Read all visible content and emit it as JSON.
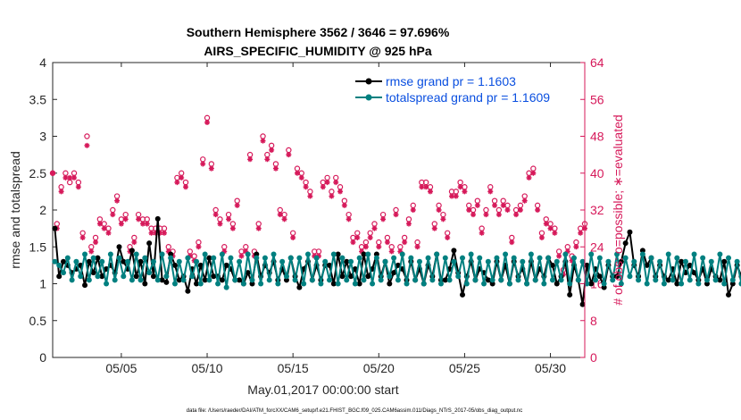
{
  "chart_data": {
    "type": "line",
    "title_line1": "Southern Hemisphere 3562 / 3646 = 97.696%",
    "title_line2": "AIRS_SPECIFIC_HUMIDITY @ 925 hPa",
    "xlabel": "May.01,2017 00:00:00 start",
    "ylabel_left": "rmse and totalspread",
    "ylabel_right": "# of obs: o=possible; ∗=evaluated",
    "ylim_left": [
      0,
      4
    ],
    "ylim_right": [
      0,
      64
    ],
    "yticks_left": [
      "0",
      "0.5",
      "1",
      "1.5",
      "2",
      "2.5",
      "3",
      "3.5",
      "4"
    ],
    "yticks_right": [
      "0",
      "8",
      "16",
      "24",
      "32",
      "40",
      "48",
      "56",
      "64"
    ],
    "x_range_days": [
      1.0,
      32.0
    ],
    "x_ticks": [
      {
        "day": 5,
        "label": "05/05"
      },
      {
        "day": 10,
        "label": "05/10"
      },
      {
        "day": 15,
        "label": "05/15"
      },
      {
        "day": 20,
        "label": "05/20"
      },
      {
        "day": 25,
        "label": "05/25"
      },
      {
        "day": 30,
        "label": "05/30"
      }
    ],
    "footnote": "data file: /Users/raeder/DAI/ATM_forcXX/CAM6_setup/f.e21.FHIST_BGC.f09_025.CAM6assim.011/Diags_NTrS_2017-05/obs_diag_output.nc",
    "series": [
      {
        "name": "rmse grand pr = 1.1603",
        "color": "#000000",
        "x_start": 1.125,
        "x_step": 0.25,
        "values": [
          1.75,
          1.1,
          1.3,
          1.25,
          1.15,
          1.2,
          1.25,
          0.98,
          1.3,
          1.15,
          1.35,
          1.1,
          1.2,
          1.25,
          1.15,
          1.5,
          1.3,
          1.2,
          1.45,
          1.1,
          1.3,
          1.0,
          1.55,
          1.1,
          1.88,
          1.05,
          1.02,
          1.4,
          1.25,
          1.05,
          1.1,
          0.9,
          1.2,
          1.0,
          1.25,
          1.05,
          1.35,
          1.1,
          1.1,
          1.05,
          1.25,
          1.2,
          1.05,
          1.05,
          1.0,
          1.15,
          1.0,
          1.4,
          1.1,
          1.25,
          1.15,
          1.3,
          1.05,
          1.2,
          1.05,
          1.35,
          1.1,
          0.95,
          1.2,
          1.3,
          1.05,
          1.25,
          1.05,
          1.25,
          1.25,
          1.0,
          1.4,
          1.1,
          1.3,
          1.1,
          1.2,
          1.0,
          1.4,
          1.1,
          1.2,
          1.4,
          1.1,
          1.3,
          1.0,
          1.15,
          1.25,
          1.2,
          1.05,
          1.3,
          1.05,
          1.2,
          1.0,
          1.25,
          1.1,
          1.4,
          1.05,
          1.05,
          1.2,
          1.45,
          1.15,
          0.85,
          1.1,
          1.3,
          1.05,
          1.2,
          1.15,
          1.05,
          1.0,
          1.3,
          1.05,
          1.25,
          1.0,
          1.3,
          1.1,
          1.2,
          1.0,
          1.3,
          1.05,
          1.2,
          1.1,
          1.35,
          1.25,
          1.0,
          1.1,
          1.3,
          0.85,
          1.25,
          1.05,
          0.72,
          1.25,
          1.0,
          1.2,
          1.1,
          0.95,
          1.25,
          1.1,
          1.1,
          1.3,
          1.55,
          1.7,
          1.25,
          1.1,
          1.45,
          1.25,
          1.35,
          1.1,
          1.25,
          1.1,
          1.05,
          1.2,
          1.0,
          1.3,
          1.15,
          1.25,
          1.15,
          1.05,
          1.2,
          1.0,
          1.2,
          1.1,
          1.05,
          1.3,
          0.85,
          1.0,
          1.25,
          1.1,
          1.25,
          1.05,
          1.2,
          1.05,
          1.05,
          1.2,
          0.85,
          1.0,
          1.0,
          1.1,
          1.25,
          1.1,
          1.3,
          1.05,
          0.9,
          1.2,
          1.05,
          0.82,
          0.85,
          1.3,
          1.1,
          1.0,
          1.2,
          1.2,
          1.0,
          1.05,
          1.15,
          1.2,
          1.0,
          1.15,
          1.0,
          1.25,
          1.05,
          1.2,
          1.05,
          1.15,
          1.1,
          1.25,
          0.85,
          1.2,
          1.05,
          1.0,
          0.9,
          1.3,
          1.2,
          0.85,
          1.1,
          1.15,
          0.95,
          0.9
        ]
      },
      {
        "name": "totalspread grand pr = 1.1609",
        "color": "#008080",
        "x_start": 1.125,
        "x_step": 0.25,
        "values": [
          1.3,
          1.25,
          1.15,
          1.35,
          1.05,
          1.3,
          1.1,
          1.4,
          1.05,
          1.35,
          1.1,
          1.3,
          1.0,
          1.4,
          1.05,
          1.35,
          1.1,
          1.3,
          1.05,
          1.4,
          1.05,
          1.35,
          1.15,
          1.3,
          1.05,
          1.4,
          1.1,
          1.35,
          1.0,
          1.3,
          1.05,
          1.35,
          1.1,
          1.3,
          1.0,
          1.4,
          1.05,
          1.35,
          1.0,
          1.4,
          0.95,
          1.35,
          1.05,
          1.3,
          1.0,
          1.4,
          1.05,
          1.35,
          1.0,
          1.35,
          1.05,
          1.4,
          1.0,
          1.3,
          1.1,
          1.35,
          1.05,
          1.35,
          1.0,
          1.4,
          1.05,
          1.35,
          1.0,
          1.3,
          1.05,
          1.4,
          1.0,
          1.35,
          1.05,
          1.3,
          1.0,
          1.35,
          1.05,
          1.4,
          1.0,
          1.35,
          1.05,
          1.3,
          1.1,
          1.35,
          1.05,
          1.4,
          1.0,
          1.35,
          1.05,
          1.3,
          1.0,
          1.35,
          1.05,
          1.4,
          1.0,
          1.35,
          1.05,
          1.3,
          1.1,
          1.35,
          1.0,
          1.4,
          1.05,
          1.35,
          1.0,
          1.3,
          1.05,
          1.35,
          1.05,
          1.4,
          1.0,
          1.35,
          1.05,
          1.3,
          1.0,
          1.4,
          1.05,
          1.35,
          1.0,
          1.35,
          1.05,
          1.3,
          1.05,
          1.4,
          1.0,
          1.35,
          1.05,
          1.3,
          1.0,
          1.4,
          1.05,
          1.35,
          1.0,
          1.3,
          1.05,
          1.4,
          1.0,
          1.35,
          1.1,
          1.3,
          1.05,
          1.4,
          1.0,
          1.35,
          1.05,
          1.3,
          1.0,
          1.4,
          1.05,
          1.35,
          1.0,
          1.3,
          1.05,
          1.4,
          1.0,
          1.35,
          1.05,
          1.3,
          1.05,
          1.4,
          1.0,
          1.35,
          1.05,
          1.3,
          1.0,
          1.4,
          1.05,
          1.35,
          1.0,
          1.3,
          1.05,
          1.4,
          1.0,
          1.35,
          1.05,
          1.3,
          1.0,
          1.4,
          1.05,
          1.35,
          1.0,
          1.3,
          1.05,
          1.4,
          1.0,
          1.35,
          1.05,
          1.3,
          1.0,
          1.4,
          1.05,
          1.35,
          1.0,
          1.3,
          1.05,
          1.4,
          1.0,
          1.35,
          1.05,
          1.3,
          1.0,
          1.4,
          1.05,
          1.35,
          1.0,
          1.3,
          1.05,
          1.4,
          1.0,
          1.35,
          1.05,
          1.3,
          1.0,
          1.4,
          1.05,
          1.2
        ]
      }
    ],
    "obs_possible": {
      "name": "possible",
      "marker": "o",
      "color": "#d6195a",
      "x_start": 1.0,
      "x_step": 0.25,
      "values": [
        40,
        29,
        37,
        40,
        38,
        40,
        38,
        27,
        48,
        24,
        26,
        30,
        29,
        28,
        32,
        35,
        30,
        31,
        24,
        26,
        31,
        30,
        30,
        28,
        28,
        28,
        28,
        24,
        23,
        39,
        40,
        38,
        23,
        22,
        25,
        43,
        52,
        42,
        32,
        30,
        24,
        31,
        29,
        34,
        23,
        24,
        44,
        23,
        29,
        48,
        44,
        46,
        42,
        32,
        31,
        45,
        27,
        41,
        40,
        38,
        36,
        23,
        23,
        38,
        39,
        36,
        39,
        37,
        34,
        31,
        26,
        27,
        24,
        25,
        27,
        29,
        25,
        31,
        26,
        24,
        32,
        24,
        26,
        30,
        33,
        25,
        38,
        38,
        37,
        29,
        33,
        31,
        27,
        36,
        36,
        38,
        37,
        33,
        32,
        34,
        28,
        32,
        37,
        34,
        32,
        34,
        33,
        26,
        32,
        33,
        35,
        40,
        41,
        33,
        27,
        30,
        29,
        28,
        23,
        19,
        24,
        22,
        25,
        28,
        29,
        15,
        28,
        24,
        29,
        31,
        29,
        29,
        28,
        27,
        32,
        28,
        29,
        30,
        27,
        32,
        31,
        32,
        28,
        31,
        28,
        28,
        25,
        34,
        30,
        29,
        27,
        32,
        18,
        38,
        28,
        27,
        27,
        30,
        30,
        39,
        28,
        30,
        40,
        33,
        32,
        32,
        29,
        27,
        28,
        24,
        28,
        31,
        33,
        28,
        26,
        29,
        29,
        28,
        32,
        20,
        24,
        29,
        20,
        30,
        37,
        28,
        29,
        21,
        26,
        27,
        30,
        28,
        33,
        32,
        26,
        32,
        26,
        21,
        21,
        31,
        33,
        32,
        31,
        29,
        19,
        20,
        22
      ]
    },
    "obs_evaluated": {
      "name": "evaluated",
      "marker": "*",
      "color": "#d6195a",
      "x_start": 1.0,
      "x_step": 0.25,
      "values": [
        40,
        28,
        36,
        39,
        39,
        39,
        37,
        26,
        46,
        23,
        25,
        29,
        28,
        27,
        31,
        34,
        29,
        30,
        23,
        25,
        30,
        29,
        29,
        27,
        27,
        27,
        27,
        23,
        22,
        38,
        39,
        37,
        22,
        21,
        24,
        42,
        51,
        41,
        31,
        29,
        23,
        30,
        28,
        33,
        22,
        23,
        43,
        22,
        28,
        47,
        43,
        45,
        41,
        31,
        30,
        44,
        26,
        40,
        39,
        37,
        35,
        22,
        22,
        37,
        38,
        35,
        38,
        36,
        33,
        30,
        25,
        26,
        23,
        24,
        26,
        28,
        24,
        30,
        25,
        23,
        31,
        23,
        25,
        29,
        32,
        24,
        37,
        37,
        36,
        28,
        32,
        30,
        26,
        35,
        35,
        37,
        36,
        32,
        31,
        33,
        27,
        31,
        36,
        33,
        31,
        33,
        32,
        25,
        31,
        32,
        34,
        39,
        40,
        32,
        26,
        29,
        28,
        27,
        22,
        18,
        23,
        21,
        24,
        27,
        28,
        14,
        27,
        23,
        28,
        30,
        28,
        28,
        27,
        26,
        31,
        27,
        28,
        29,
        26,
        31,
        30,
        31,
        27,
        30,
        27,
        27,
        24,
        33,
        29,
        28,
        26,
        31,
        17,
        37,
        27,
        26,
        26,
        29,
        29,
        38,
        27,
        29,
        39,
        32,
        31,
        31,
        28,
        26,
        27,
        23,
        27,
        30,
        32,
        27,
        25,
        28,
        28,
        27,
        31,
        19,
        23,
        28,
        19,
        29,
        36,
        27,
        28,
        20,
        25,
        26,
        29,
        27,
        32,
        31,
        25,
        31,
        25,
        20,
        20,
        30,
        32,
        31,
        30,
        28,
        18,
        19,
        21
      ]
    }
  }
}
